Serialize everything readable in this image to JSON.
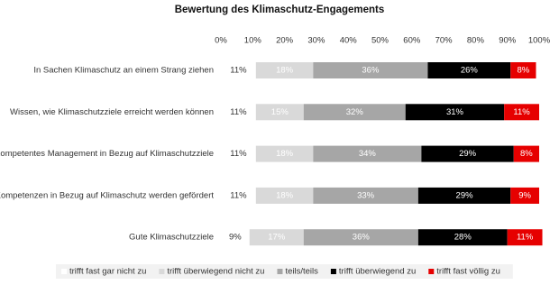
{
  "chart_data": {
    "type": "stacked-bar-horizontal",
    "title": "Bewertung des Klimaschutz-Engagements",
    "categories": [
      "In Sachen Klimaschutz an einem Strang ziehen",
      "Wissen, wie Klimaschutzziele erreicht werden können",
      "Kompetentes Management in Bezug auf Klimaschutzziele",
      "Kompetenzen in Bezug auf Klimaschutz werden gefördert",
      "Gute Klimaschutzziele"
    ],
    "series": [
      {
        "name": "trifft fast gar nicht zu",
        "color": "#ffffff",
        "values": [
          11,
          11,
          11,
          11,
          9
        ],
        "value_labels": [
          "11%",
          "11%",
          "11%",
          "11%",
          "9%"
        ]
      },
      {
        "name": "trifft überwiegend nicht zu",
        "color": "#d9d9d9",
        "values": [
          18,
          15,
          18,
          18,
          17
        ],
        "value_labels": [
          "18%",
          "15%",
          "18%",
          "18%",
          "17%"
        ]
      },
      {
        "name": "teils/teils",
        "color": "#a6a6a6",
        "values": [
          36,
          32,
          34,
          33,
          36
        ],
        "value_labels": [
          "36%",
          "32%",
          "34%",
          "33%",
          "36%"
        ]
      },
      {
        "name": "trifft überwiegend zu",
        "color": "#000000",
        "values": [
          26,
          31,
          29,
          29,
          28
        ],
        "value_labels": [
          "26%",
          "31%",
          "29%",
          "29%",
          "28%"
        ]
      },
      {
        "name": "trifft fast völlig zu",
        "color": "#e60000",
        "values": [
          8,
          11,
          8,
          9,
          11
        ],
        "value_labels": [
          "8%",
          "11%",
          "8%",
          "9%",
          "11%"
        ]
      }
    ],
    "xlim": [
      0,
      100
    ],
    "xticks": [
      {
        "value": 0,
        "label": "0%"
      },
      {
        "value": 10,
        "label": "10%"
      },
      {
        "value": 20,
        "label": "20%"
      },
      {
        "value": 30,
        "label": "30%"
      },
      {
        "value": 40,
        "label": "40%"
      },
      {
        "value": 50,
        "label": "50%"
      },
      {
        "value": 60,
        "label": "60%"
      },
      {
        "value": 70,
        "label": "70%"
      },
      {
        "value": 80,
        "label": "80%"
      },
      {
        "value": 90,
        "label": "90%"
      },
      {
        "value": 100,
        "label": "100%"
      }
    ],
    "grid": false,
    "legend": "bottom"
  }
}
